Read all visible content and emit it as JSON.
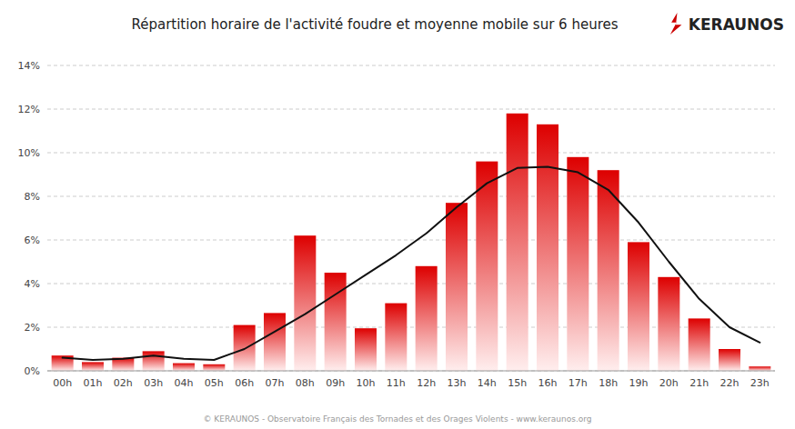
{
  "chart_data": {
    "type": "bar",
    "title": "Répartition horaire de l'activité foudre et moyenne mobile sur 6 heures",
    "categories": [
      "00h",
      "01h",
      "02h",
      "03h",
      "04h",
      "05h",
      "06h",
      "07h",
      "08h",
      "09h",
      "10h",
      "11h",
      "12h",
      "13h",
      "14h",
      "15h",
      "16h",
      "17h",
      "18h",
      "19h",
      "20h",
      "21h",
      "22h",
      "23h"
    ],
    "series": [
      {
        "type": "bar",
        "color": "#dd0000",
        "values": [
          0.7,
          0.4,
          0.6,
          0.9,
          0.35,
          0.3,
          2.1,
          2.65,
          6.2,
          4.5,
          1.95,
          3.1,
          4.8,
          7.7,
          9.6,
          11.8,
          11.3,
          9.8,
          9.2,
          5.9,
          4.3,
          2.4,
          1.0,
          0.2
        ]
      },
      {
        "type": "line",
        "color": "#111111",
        "values": [
          0.6,
          0.5,
          0.55,
          0.7,
          0.55,
          0.5,
          1.0,
          1.8,
          2.6,
          3.5,
          4.4,
          5.3,
          6.3,
          7.5,
          8.6,
          9.3,
          9.35,
          9.1,
          8.3,
          6.8,
          5.0,
          3.3,
          2.0,
          1.3
        ]
      }
    ],
    "ylim": [
      0,
      14
    ],
    "yticks": [
      {
        "value": 0,
        "label": "0%"
      },
      {
        "value": 2,
        "label": "2%"
      },
      {
        "value": 4,
        "label": "4%"
      },
      {
        "value": 6,
        "label": "6%"
      },
      {
        "value": 8,
        "label": "8%"
      },
      {
        "value": 10,
        "label": "10%"
      },
      {
        "value": 12,
        "label": "12%"
      },
      {
        "value": 14,
        "label": "14%"
      }
    ],
    "grid": true,
    "annotations": [
      "© KERAUNOS - Observatoire Français des Tornades et des Orages Violents - www.keraunos.org",
      "KERAUNOS"
    ]
  }
}
